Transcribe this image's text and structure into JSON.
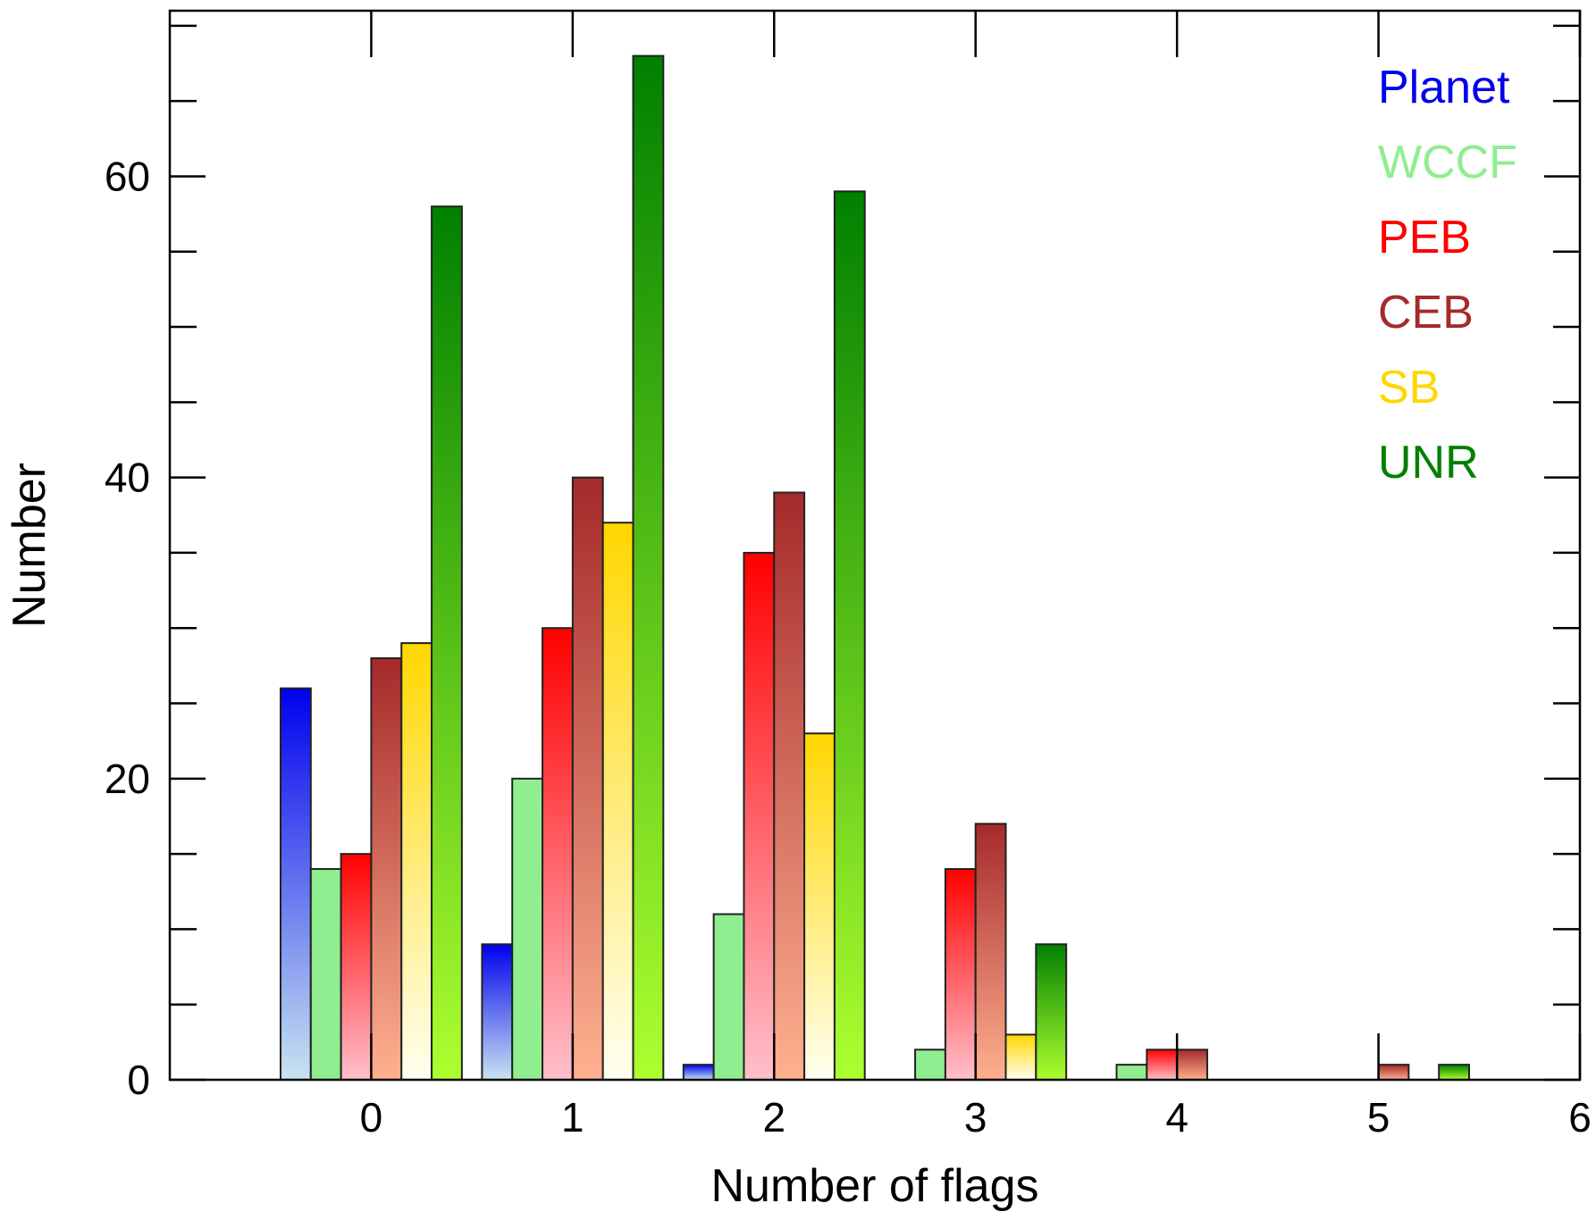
{
  "chart_data": {
    "type": "bar",
    "title": "",
    "xlabel": "Number of flags",
    "ylabel": "Number",
    "xlim": [
      -1,
      6
    ],
    "ylim": [
      0,
      71
    ],
    "categories": [
      0,
      1,
      2,
      3,
      4,
      5
    ],
    "x_tick_labels": [
      "0",
      "1",
      "2",
      "3",
      "4",
      "5",
      "6"
    ],
    "y_tick_labels": [
      "0",
      "20",
      "40",
      "60"
    ],
    "legend_position": "top-right",
    "series": [
      {
        "name": "Planet",
        "color": "#0000ee",
        "gradient_light": "#c8e4f0",
        "values": [
          26,
          9,
          1,
          0,
          0,
          0
        ]
      },
      {
        "name": "WCCF",
        "color": "#90ee90",
        "gradient_light": "#90ee90",
        "values": [
          14,
          20,
          11,
          2,
          1,
          0
        ]
      },
      {
        "name": "PEB",
        "color": "#ff0000",
        "gradient_light": "#ffc0cb",
        "values": [
          15,
          30,
          35,
          14,
          2,
          0
        ]
      },
      {
        "name": "CEB",
        "color": "#a52a2a",
        "gradient_light": "#ffb090",
        "values": [
          28,
          40,
          39,
          17,
          2,
          1
        ]
      },
      {
        "name": "SB",
        "color": "#ffd700",
        "gradient_light": "#fffff0",
        "values": [
          29,
          37,
          23,
          3,
          0,
          0
        ]
      },
      {
        "name": "UNR",
        "color": "#008000",
        "gradient_light": "#adff2f",
        "values": [
          58,
          68,
          59,
          9,
          0,
          1
        ]
      }
    ]
  }
}
